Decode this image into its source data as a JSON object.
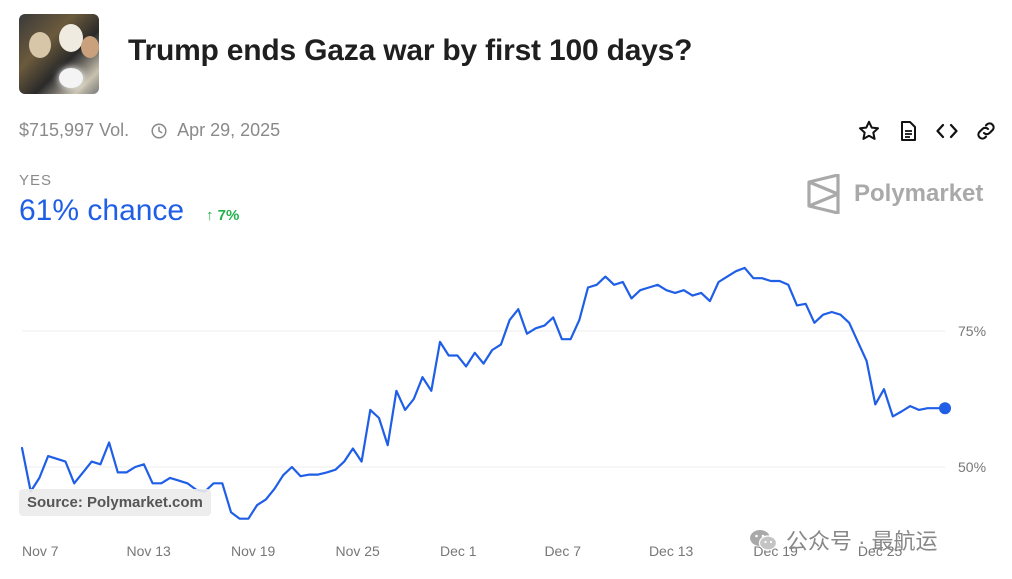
{
  "header": {
    "title": "Trump ends Gaza war by first 100 days?",
    "volume": "$715,997 Vol.",
    "end_date": "Apr 29, 2025"
  },
  "outcome": {
    "label": "YES",
    "chance": "61% chance",
    "delta": "7%"
  },
  "brand": {
    "name": "Polymarket"
  },
  "source": "Source: Polymarket.com",
  "watermark": "公众号 · 最航运",
  "icons": [
    "star-icon",
    "document-icon",
    "embed-code-icon",
    "link-icon",
    "clock-icon",
    "polymarket-logo-icon",
    "wechat-icon"
  ],
  "colors": {
    "line": "#1f5ee6",
    "positive": "#22b14c",
    "muted": "#8a8a8a"
  },
  "chart_data": {
    "type": "line",
    "title": "",
    "xlabel": "",
    "ylabel": "",
    "ylim": [
      38,
      100
    ],
    "yticks": [
      {
        "value": 75,
        "label": "75%"
      },
      {
        "value": 50,
        "label": "50%"
      }
    ],
    "xticks": [
      {
        "index": 0,
        "label": "Nov 7"
      },
      {
        "index": 12,
        "label": "Nov 13"
      },
      {
        "index": 24,
        "label": "Nov 19"
      },
      {
        "index": 36,
        "label": "Nov 25"
      },
      {
        "index": 48,
        "label": "Dec 1"
      },
      {
        "index": 60,
        "label": "Dec 7"
      },
      {
        "index": 72,
        "label": "Dec 13"
      },
      {
        "index": 84,
        "label": "Dec 19"
      },
      {
        "index": 96,
        "label": "Dec 25"
      }
    ],
    "series": [
      {
        "values": [
          53.5,
          45.5,
          48,
          52,
          51.5,
          51,
          47,
          49,
          51,
          50.5,
          54.5,
          49,
          49,
          50,
          50.5,
          47,
          47,
          48,
          47.5,
          47,
          45.8,
          45.5,
          47,
          47,
          41.7,
          40.5,
          40.5,
          43,
          44,
          46,
          48.5,
          50,
          48.3,
          48.6,
          48.6,
          49,
          49.5,
          51,
          53.4,
          51,
          60.5,
          59,
          54,
          64,
          60.5,
          62.5,
          66.5,
          64,
          73,
          70.5,
          70.5,
          68.5,
          71,
          69,
          71.5,
          72.5,
          77,
          79,
          74.5,
          75.5,
          76,
          77.5,
          73.5,
          73.5,
          77,
          83,
          83.5,
          85,
          83.5,
          84,
          81,
          82.5,
          83,
          83.5,
          82.5,
          82,
          82.5,
          81.5,
          82,
          80.5,
          84,
          85,
          86,
          86.6,
          84.7,
          84.7,
          84.2,
          84.2,
          83.5,
          79.7,
          80,
          76.5,
          78,
          78.5,
          78,
          76.5,
          73,
          69.5,
          61.5,
          64.3,
          59.3,
          60.2,
          61.2,
          60.5,
          60.8,
          60.8,
          60.8
        ]
      }
    ]
  }
}
